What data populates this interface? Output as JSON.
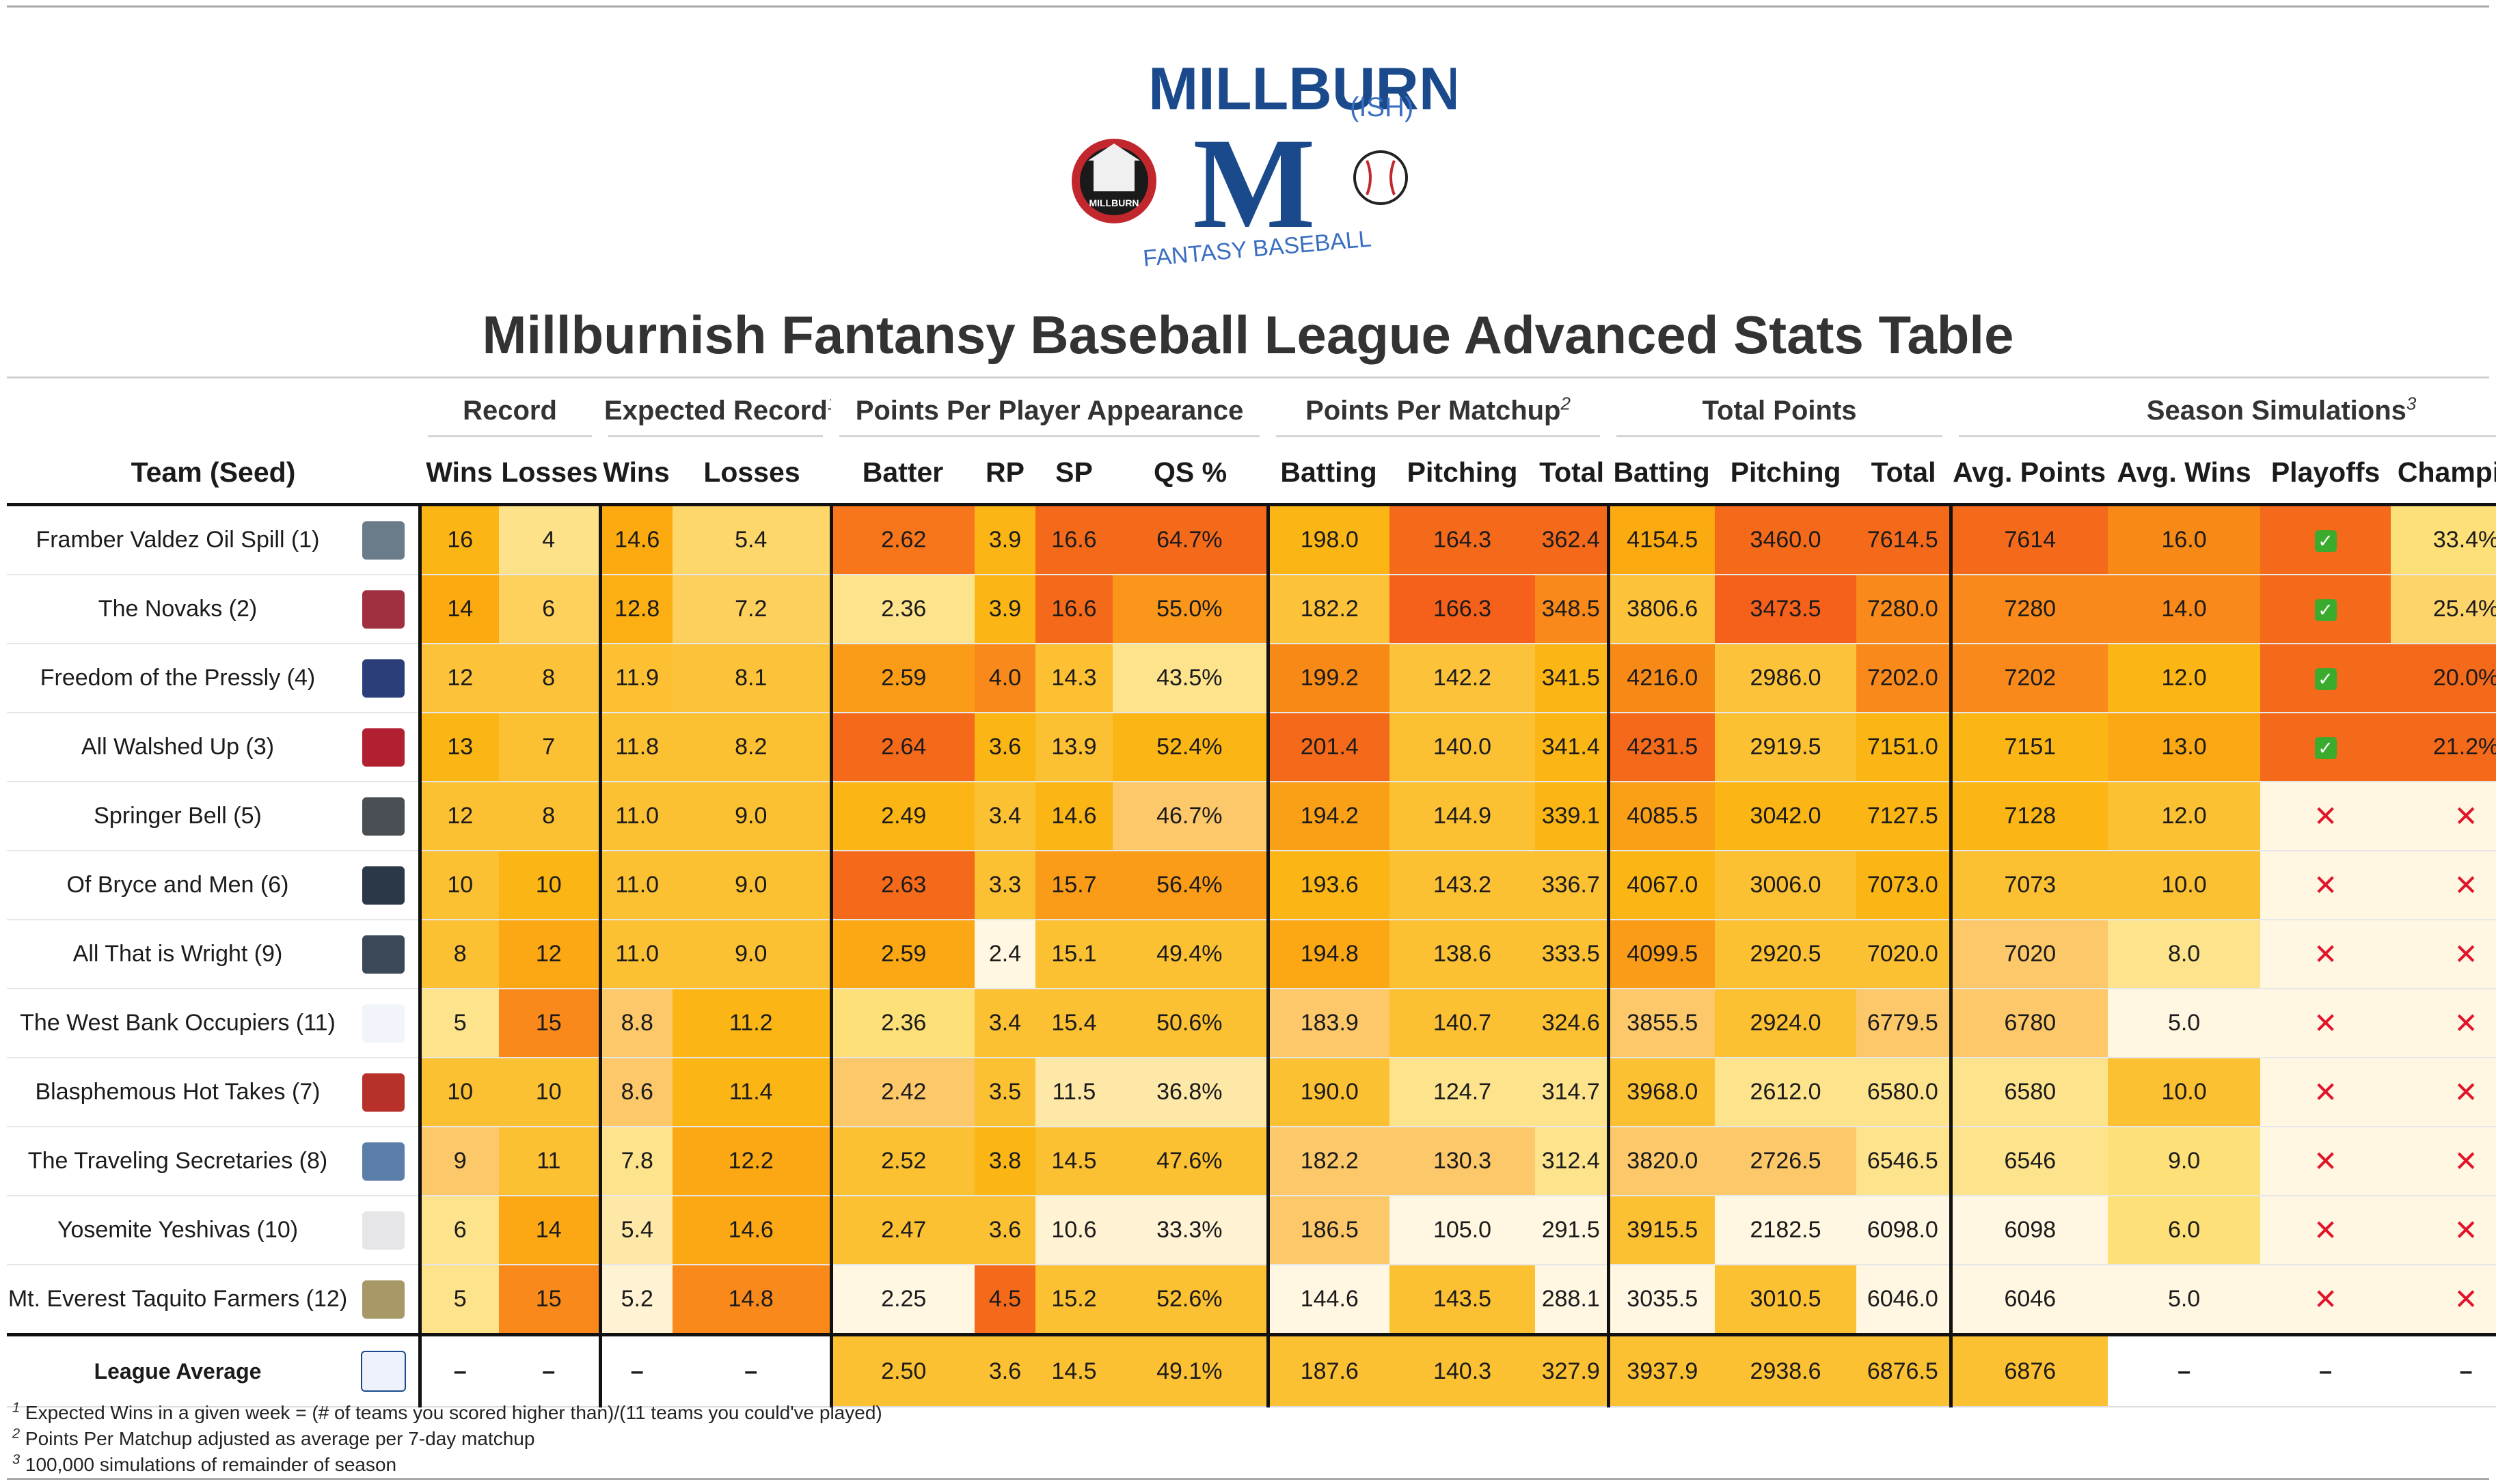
{
  "logo": {
    "text_top": "MILLBURN",
    "text_ish": "(ISH)",
    "text_bottom": "FANTASY BASEBALL",
    "badge_text": "MILLBURN",
    "letter": "M",
    "colors": {
      "navy": "#1a4a8c",
      "red": "#c1272d"
    }
  },
  "title": "Millburnish Fantansy Baseball League Advanced Stats Table",
  "groups": {
    "record": "Record",
    "expected": "Expected Record",
    "expected_note": "1",
    "pppa": "Points Per Player Appearance",
    "ppm": "Points Per Matchup",
    "ppm_note": "2",
    "total": "Total Points",
    "sim": "Season Simulations",
    "sim_note": "3"
  },
  "columns": {
    "team": "Team (Seed)",
    "wins": "Wins",
    "losses": "Losses",
    "xwins": "Wins",
    "xlosses": "Losses",
    "batter": "Batter",
    "rp": "RP",
    "sp": "SP",
    "qs": "QS %",
    "m_bat": "Batting",
    "m_pit": "Pitching",
    "m_tot": "Total",
    "t_bat": "Batting",
    "t_pit": "Pitching",
    "t_tot": "Total",
    "avg_pts": "Avg. Points",
    "avg_wins": "Avg. Wins",
    "playoffs": "Playoffs",
    "champ": "Champion",
    "last_icon": "ship-image-icon"
  },
  "rows": [
    {
      "team": "Framber Valdez Oil Spill (1)",
      "w": "16",
      "l": "4",
      "xw": "14.6",
      "xl": "5.4",
      "bat": "2.62",
      "rp": "3.9",
      "sp": "16.6",
      "qs": "64.7%",
      "mb": "198.0",
      "mp": "164.3",
      "mt": "362.4",
      "tb": "4154.5",
      "tp": "3460.0",
      "tt": "7614.5",
      "ap": "7614",
      "aw": "16.0",
      "po": true,
      "ch": "33.4%",
      "last": false,
      "c": [
        "#fbb615",
        "#fee28a",
        "#fcaa10",
        "#fdd76a",
        "#f7761c",
        "#fbb615",
        "#f56a1a",
        "#f56a1a",
        "#fbb615",
        "#f56a1a",
        "#f56a1a",
        "#fbaa10",
        "#f56a1a",
        "#f56a1a",
        "#f56a1a",
        "#f78a17",
        "#fde078",
        "#fff7e2"
      ],
      "av": "#6a7b8a"
    },
    {
      "team": "The Novaks (2)",
      "w": "14",
      "l": "6",
      "xw": "12.8",
      "xl": "7.2",
      "bat": "2.36",
      "rp": "3.9",
      "sp": "16.6",
      "qs": "55.0%",
      "mb": "182.2",
      "mp": "166.3",
      "mt": "348.5",
      "tb": "3806.6",
      "tp": "3473.5",
      "tt": "7280.0",
      "ap": "7280",
      "aw": "14.0",
      "po": true,
      "ch": "25.4%",
      "last": false,
      "c": [
        "#fbaa10",
        "#fdd15b",
        "#fbaf12",
        "#fdcf5c",
        "#fde38c",
        "#fbb615",
        "#f56a1a",
        "#fa961a",
        "#fcc33a",
        "#f5601a",
        "#f9891a",
        "#fcc33a",
        "#f5601a",
        "#f9891a",
        "#f9891a",
        "#f9891a",
        "#fdd46a",
        "#fff7e2"
      ],
      "av": "#a03040"
    },
    {
      "team": "Freedom of the Pressly (4)",
      "w": "12",
      "l": "8",
      "xw": "11.9",
      "xl": "8.1",
      "bat": "2.59",
      "rp": "4.0",
      "sp": "14.3",
      "qs": "43.5%",
      "mb": "199.2",
      "mp": "142.2",
      "mt": "341.5",
      "tb": "4216.0",
      "tp": "2986.0",
      "tt": "7202.0",
      "ap": "7202",
      "aw": "12.0",
      "po": true,
      "ch": "20.0%",
      "last": false,
      "c": [
        "#fcc33a",
        "#fcc33a",
        "#fcc032",
        "#fcc33a",
        "#fa9c17",
        "#f9891a",
        "#fcc032",
        "#fde38c",
        "#f78a17",
        "#fcc33a",
        "#fbb615",
        "#f78a17",
        "#fcc33a",
        "#f9891a",
        "#f9891a",
        "#fbb615",
        "#f56a1a",
        "#fde078"
      ],
      "av": "#2c3e7a"
    },
    {
      "team": "All Walshed Up (3)",
      "w": "13",
      "l": "7",
      "xw": "11.8",
      "xl": "8.2",
      "bat": "2.64",
      "rp": "3.6",
      "sp": "13.9",
      "qs": "52.4%",
      "mb": "201.4",
      "mp": "140.0",
      "mt": "341.4",
      "tb": "4231.5",
      "tp": "2919.5",
      "tt": "7151.0",
      "ap": "7151",
      "aw": "13.0",
      "po": true,
      "ch": "21.2%",
      "last": false,
      "c": [
        "#fbb615",
        "#fcc033",
        "#fcc033",
        "#fcc033",
        "#f56a1a",
        "#fbb615",
        "#fcc033",
        "#fbb615",
        "#f56a1a",
        "#fcc033",
        "#fbb615",
        "#f56a1a",
        "#fcc033",
        "#fbb615",
        "#fbb615",
        "#fba814",
        "#f56a1a",
        "#fde38c"
      ],
      "av": "#b02030"
    },
    {
      "team": "Springer Bell (5)",
      "w": "12",
      "l": "8",
      "xw": "11.0",
      "xl": "9.0",
      "bat": "2.49",
      "rp": "3.4",
      "sp": "14.6",
      "qs": "46.7%",
      "mb": "194.2",
      "mp": "144.9",
      "mt": "339.1",
      "tb": "4085.5",
      "tp": "3042.0",
      "tt": "7127.5",
      "ap": "7128",
      "aw": "12.0",
      "po": false,
      "ch": "",
      "last": false,
      "c": [
        "#fcc033",
        "#fcc033",
        "#fcc033",
        "#fcc033",
        "#fbb615",
        "#fcc033",
        "#fbb615",
        "#fcc86a",
        "#f9a016",
        "#fcc033",
        "#fbb615",
        "#f9a016",
        "#fbb615",
        "#fbb615",
        "#fbb615",
        "#fcc033",
        "#fff7e2",
        "#fff7e2"
      ],
      "av": "#4a4f55"
    },
    {
      "team": "Of Bryce and Men (6)",
      "w": "10",
      "l": "10",
      "xw": "11.0",
      "xl": "9.0",
      "bat": "2.63",
      "rp": "3.3",
      "sp": "15.7",
      "qs": "56.4%",
      "mb": "193.6",
      "mp": "143.2",
      "mt": "336.7",
      "tb": "4067.0",
      "tp": "3006.0",
      "tt": "7073.0",
      "ap": "7073",
      "aw": "10.0",
      "po": false,
      "ch": "",
      "last": false,
      "c": [
        "#fcc033",
        "#fbb615",
        "#fcc033",
        "#fcc033",
        "#f56a1a",
        "#fcc033",
        "#fa9c17",
        "#fa9c17",
        "#fbb615",
        "#fcc033",
        "#fcc033",
        "#fbb615",
        "#fcc033",
        "#fbb615",
        "#fcc033",
        "#fcc033",
        "#fff7e2",
        "#fff7e2"
      ],
      "av": "#2a3848"
    },
    {
      "team": "All That is Wright (9)",
      "w": "8",
      "l": "12",
      "xw": "11.0",
      "xl": "9.0",
      "bat": "2.59",
      "rp": "2.4",
      "sp": "15.1",
      "qs": "49.4%",
      "mb": "194.8",
      "mp": "138.6",
      "mt": "333.5",
      "tb": "4099.5",
      "tp": "2920.5",
      "tt": "7020.0",
      "ap": "7020",
      "aw": "8.0",
      "po": false,
      "ch": "",
      "last": false,
      "c": [
        "#fcc033",
        "#fba814",
        "#fcc033",
        "#fcc033",
        "#fba814",
        "#fff7e2",
        "#fcc033",
        "#fcc033",
        "#fba814",
        "#fcc033",
        "#fcc033",
        "#fa9c17",
        "#fcc033",
        "#fcc033",
        "#fcc86a",
        "#fde38c",
        "#fff7e2",
        "#fff7e2"
      ],
      "av": "#3a4858"
    },
    {
      "team": "The West Bank Occupiers (11)",
      "w": "5",
      "l": "15",
      "xw": "8.8",
      "xl": "11.2",
      "bat": "2.36",
      "rp": "3.4",
      "sp": "15.4",
      "qs": "50.6%",
      "mb": "183.9",
      "mp": "140.7",
      "mt": "324.6",
      "tb": "3855.5",
      "tp": "2924.0",
      "tt": "6779.5",
      "ap": "6780",
      "aw": "5.0",
      "po": false,
      "ch": "",
      "last": false,
      "c": [
        "#fde38c",
        "#f9891a",
        "#fcc86a",
        "#fbb615",
        "#fde078",
        "#fcc033",
        "#fcc033",
        "#fcc033",
        "#fcc86a",
        "#fcc033",
        "#fcc033",
        "#fcc86a",
        "#fcc033",
        "#fcc86a",
        "#fcc86a",
        "#fff7e2",
        "#fff7e2",
        "#fff7e2"
      ],
      "av": "#f2f4fb"
    },
    {
      "team": "Blasphemous Hot Takes (7)",
      "w": "10",
      "l": "10",
      "xw": "8.6",
      "xl": "11.4",
      "bat": "2.42",
      "rp": "3.5",
      "sp": "11.5",
      "qs": "36.8%",
      "mb": "190.0",
      "mp": "124.7",
      "mt": "314.7",
      "tb": "3968.0",
      "tp": "2612.0",
      "tt": "6580.0",
      "ap": "6580",
      "aw": "10.0",
      "po": false,
      "ch": "",
      "last": false,
      "c": [
        "#fcc033",
        "#fcc033",
        "#fcc86a",
        "#fbb615",
        "#fcc86a",
        "#fcc033",
        "#fde8a8",
        "#fde8a8",
        "#fcc033",
        "#fde38c",
        "#fde38c",
        "#fcc033",
        "#fde38c",
        "#fde38c",
        "#fde38c",
        "#fcc033",
        "#fff7e2",
        "#fff7e2"
      ],
      "av": "#b8302a"
    },
    {
      "team": "The Traveling Secretaries (8)",
      "w": "9",
      "l": "11",
      "xw": "7.8",
      "xl": "12.2",
      "bat": "2.52",
      "rp": "3.8",
      "sp": "14.5",
      "qs": "47.6%",
      "mb": "182.2",
      "mp": "130.3",
      "mt": "312.4",
      "tb": "3820.0",
      "tp": "2726.5",
      "tt": "6546.5",
      "ap": "6546",
      "aw": "9.0",
      "po": false,
      "ch": "",
      "last": false,
      "c": [
        "#fcc86a",
        "#fcc033",
        "#fde38c",
        "#fba814",
        "#fcc033",
        "#fbb615",
        "#fcc033",
        "#fcc033",
        "#fcc86a",
        "#fcc86a",
        "#fde38c",
        "#fcc86a",
        "#fcc86a",
        "#fde38c",
        "#fde38c",
        "#fde078",
        "#fff7e2",
        "#fff7e2"
      ],
      "av": "#5a7ea8"
    },
    {
      "team": "Yosemite Yeshivas (10)",
      "w": "6",
      "l": "14",
      "xw": "5.4",
      "xl": "14.6",
      "bat": "2.47",
      "rp": "3.6",
      "sp": "10.6",
      "qs": "33.3%",
      "mb": "186.5",
      "mp": "105.0",
      "mt": "291.5",
      "tb": "3915.5",
      "tp": "2182.5",
      "tt": "6098.0",
      "ap": "6098",
      "aw": "6.0",
      "po": false,
      "ch": "",
      "last": false,
      "c": [
        "#fde38c",
        "#fba814",
        "#fde8a8",
        "#fba814",
        "#fcc033",
        "#fcc033",
        "#fff3d4",
        "#fff3d4",
        "#fcc86a",
        "#fff7e2",
        "#fff7e2",
        "#fcc033",
        "#fff7e2",
        "#fff7e2",
        "#fff7e2",
        "#fde078",
        "#fff7e2",
        "#fff7e2"
      ],
      "av": "#e6e6e8"
    },
    {
      "team": "Mt. Everest Taquito Farmers (12)",
      "w": "5",
      "l": "15",
      "xw": "5.2",
      "xl": "14.8",
      "bat": "2.25",
      "rp": "4.5",
      "sp": "15.2",
      "qs": "52.6%",
      "mb": "144.6",
      "mp": "143.5",
      "mt": "288.1",
      "tb": "3035.5",
      "tp": "3010.5",
      "tt": "6046.0",
      "ap": "6046",
      "aw": "5.0",
      "po": false,
      "ch": "",
      "last": true,
      "c": [
        "#fde38c",
        "#f9891a",
        "#fff3d4",
        "#f9891a",
        "#fff7e2",
        "#f56a1a",
        "#fcc033",
        "#fcc033",
        "#fff7e2",
        "#fcc033",
        "#fff7e2",
        "#fff7e2",
        "#fcc033",
        "#fff7e2",
        "#fff7e2",
        "#fff7e2",
        "#fff7e2",
        "#f56a1a"
      ],
      "av": "#a89868"
    }
  ],
  "average": {
    "label": "League Average",
    "w": "–",
    "l": "–",
    "xw": "–",
    "xl": "–",
    "bat": "2.50",
    "rp": "3.6",
    "sp": "14.5",
    "qs": "49.1%",
    "mb": "187.6",
    "mp": "140.3",
    "mt": "327.9",
    "tb": "3937.9",
    "tp": "2938.6",
    "tt": "6876.5",
    "ap": "6876",
    "aw": "–",
    "po": "–",
    "ch": "–",
    "last": "–",
    "c": [
      "#fcc033",
      "#fcc033",
      "#fcc033",
      "#fcc033",
      "#fcc033",
      "#fcc033",
      "#fcc033",
      "#fcc033",
      "#fcc033",
      "#fcc033",
      "#fcc033"
    ]
  },
  "footnotes": [
    {
      "n": "1",
      "text": "Expected Wins in a given week = (# of teams you scored higher than)/(11 teams you could've played)"
    },
    {
      "n": "2",
      "text": "Points Per Matchup adjusted as average per 7-day matchup"
    },
    {
      "n": "3",
      "text": "100,000 simulations of remainder of season"
    }
  ],
  "symbols": {
    "cross": "✕",
    "check": "✓",
    "dash": "–"
  }
}
